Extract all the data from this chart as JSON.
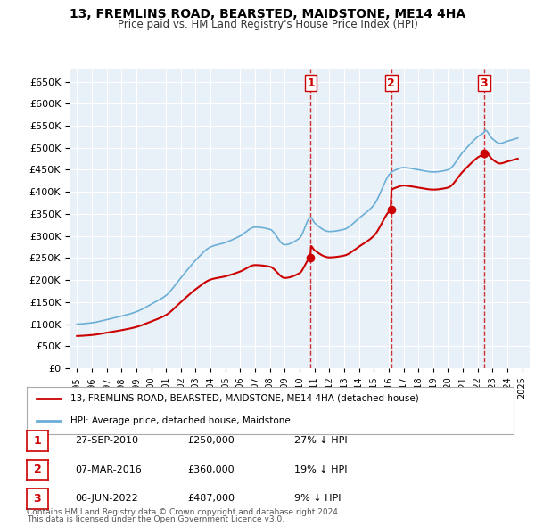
{
  "title": "13, FREMLINS ROAD, BEARSTED, MAIDSTONE, ME14 4HA",
  "subtitle": "Price paid vs. HM Land Registry's House Price Index (HPI)",
  "ylabel": "",
  "background_color": "#ffffff",
  "plot_bg_color": "#e8f0f8",
  "grid_color": "#ffffff",
  "hpi_color": "#6baed6",
  "price_color": "#cc0000",
  "sale_marker_color": "#cc0000",
  "dashed_line_color": "#cc0000",
  "transactions": [
    {
      "num": 1,
      "date": "27-SEP-2010",
      "price": 250000,
      "pct": "27% ↓ HPI",
      "x": 2010.75
    },
    {
      "num": 2,
      "date": "07-MAR-2016",
      "price": 360000,
      "pct": "19% ↓ HPI",
      "x": 2016.17
    },
    {
      "num": 3,
      "date": "06-JUN-2022",
      "price": 487000,
      "pct": "9% ↓ HPI",
      "x": 2022.42
    }
  ],
  "legend_label_price": "13, FREMLINS ROAD, BEARSTED, MAIDSTONE, ME14 4HA (detached house)",
  "legend_label_hpi": "HPI: Average price, detached house, Maidstone",
  "footer": [
    "Contains HM Land Registry data © Crown copyright and database right 2024.",
    "This data is licensed under the Open Government Licence v3.0."
  ],
  "ylim": [
    0,
    680000
  ],
  "yticks": [
    0,
    50000,
    100000,
    150000,
    200000,
    250000,
    300000,
    350000,
    400000,
    450000,
    500000,
    550000,
    600000,
    650000
  ],
  "xlim": [
    1994.5,
    2025.5
  ],
  "xticks": [
    1995,
    1996,
    1997,
    1998,
    1999,
    2000,
    2001,
    2002,
    2003,
    2004,
    2005,
    2006,
    2007,
    2008,
    2009,
    2010,
    2011,
    2012,
    2013,
    2014,
    2015,
    2016,
    2017,
    2018,
    2019,
    2020,
    2021,
    2022,
    2023,
    2024,
    2025
  ]
}
